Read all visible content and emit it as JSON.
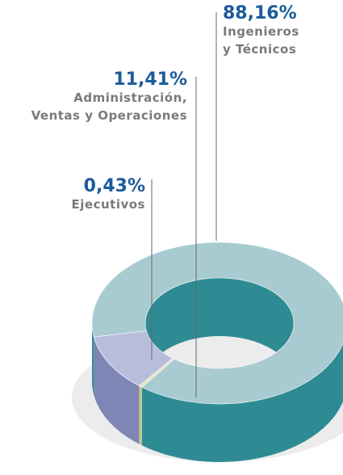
{
  "chart_data": {
    "type": "donut3d",
    "categories": [
      "Ingenieros\ny Técnicos",
      "Administración,\nVentas y Operaciones",
      "Ejecutivos"
    ],
    "values": [
      88.16,
      11.41,
      0.43
    ],
    "value_labels": [
      "88,16%",
      "11,41%",
      "0,43%"
    ],
    "colors": [
      "#a8cbd1",
      "#b8bddc",
      "#e6e4bd"
    ],
    "side_colors": [
      "#2e8b93",
      "#7d86b5",
      "#c9c58e"
    ]
  }
}
